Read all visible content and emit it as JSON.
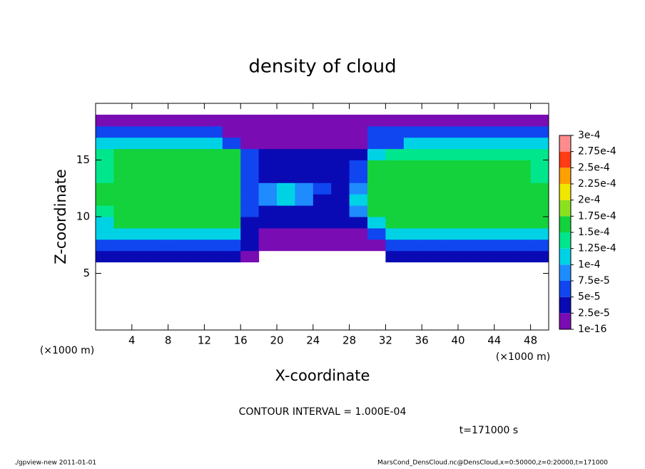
{
  "chart_data": {
    "type": "heatmap",
    "title": "density of cloud",
    "x_label": "X-coordinate",
    "y_label": "Z-coordinate",
    "x_units_left": "(×1000 m)",
    "x_units_right": "(×1000 m)",
    "contour_note": "CONTOUR INTERVAL = 1.000E-04",
    "time_note": "t=171000 s",
    "footer_left": "./gpview-new  2011-01-01",
    "footer_right": "MarsCond_DensCloud.nc@DensCloud,x=0:50000,z=0:20000,t=171000",
    "xlim": [
      0,
      50
    ],
    "ylim": [
      0,
      20
    ],
    "xticks": [
      4,
      8,
      12,
      16,
      20,
      24,
      28,
      32,
      36,
      40,
      44,
      48
    ],
    "yticks": [
      5,
      10,
      15
    ],
    "x_bins": [
      0,
      2,
      4,
      6,
      8,
      10,
      12,
      14,
      16,
      18,
      20,
      22,
      24,
      26,
      28,
      30,
      32,
      34,
      36,
      38,
      40,
      42,
      44,
      46,
      48,
      50
    ],
    "z_bins": [
      6,
      7,
      8,
      9,
      10,
      11,
      12,
      13,
      14,
      15,
      16,
      17,
      18,
      19
    ],
    "values": [
      [
        4e-05,
        4e-05,
        4e-05,
        4e-05,
        4e-05,
        4e-05,
        4e-05,
        4e-05,
        2e-05,
        null,
        null,
        null,
        null,
        null,
        null,
        null,
        3e-05,
        3e-05,
        3e-05,
        3e-05,
        3e-05,
        3e-05,
        3e-05,
        3e-05,
        3e-05
      ],
      [
        7e-05,
        7e-05,
        7e-05,
        7e-05,
        7e-05,
        7e-05,
        7e-05,
        7e-05,
        4e-05,
        1e-05,
        1e-05,
        1e-05,
        1e-05,
        1e-05,
        1e-05,
        2e-05,
        6e-05,
        6e-05,
        6e-05,
        6e-05,
        6e-05,
        6e-05,
        6e-05,
        6e-05,
        6e-05
      ],
      [
        0.000105,
        0.000105,
        0.000105,
        0.000105,
        0.000105,
        0.000105,
        0.000105,
        0.000105,
        3e-05,
        2e-05,
        2e-05,
        2e-05,
        2e-05,
        2e-05,
        2e-05,
        6e-05,
        0.000105,
        0.000105,
        0.000105,
        0.000105,
        0.000105,
        0.000105,
        0.000105,
        0.000105,
        0.000105
      ],
      [
        0.00012,
        0.00015,
        0.00015,
        0.00015,
        0.00015,
        0.00015,
        0.00015,
        0.00015,
        4e-05,
        3e-05,
        3e-05,
        3e-05,
        3e-05,
        3e-05,
        3e-05,
        0.00012,
        0.00015,
        0.00015,
        0.00015,
        0.00015,
        0.00015,
        0.00015,
        0.00015,
        0.00015,
        0.00015
      ],
      [
        0.00013,
        0.00016,
        0.00016,
        0.00016,
        0.00016,
        0.00016,
        0.00016,
        0.00016,
        5e-05,
        4e-05,
        4e-05,
        4e-05,
        4e-05,
        4e-05,
        9e-05,
        0.000155,
        0.000155,
        0.000155,
        0.000155,
        0.000155,
        0.000155,
        0.000155,
        0.000155,
        0.000155,
        0.000155
      ],
      [
        0.000165,
        0.000165,
        0.000165,
        0.000165,
        0.000165,
        0.000165,
        0.000165,
        0.000165,
        6e-05,
        9e-05,
        0.00011,
        8e-05,
        4e-05,
        4e-05,
        0.0001,
        0.00016,
        0.00016,
        0.00016,
        0.00016,
        0.00016,
        0.00016,
        0.00016,
        0.00016,
        0.00016,
        0.00016
      ],
      [
        0.000165,
        0.000165,
        0.000165,
        0.000165,
        0.000165,
        0.000165,
        0.000165,
        0.000165,
        6e-05,
        8e-05,
        0.00012,
        9e-05,
        5e-05,
        4e-05,
        8e-05,
        0.000165,
        0.000165,
        0.000165,
        0.000165,
        0.000165,
        0.000165,
        0.000165,
        0.000165,
        0.000165,
        0.000165
      ],
      [
        0.00014,
        0.000165,
        0.000165,
        0.000165,
        0.000165,
        0.000165,
        0.000165,
        0.000165,
        5e-05,
        4e-05,
        4e-05,
        4e-05,
        4e-05,
        4e-05,
        7e-05,
        0.000155,
        0.000155,
        0.000155,
        0.000155,
        0.000155,
        0.000155,
        0.000155,
        0.000155,
        0.000155,
        0.000145
      ],
      [
        0.00014,
        0.00016,
        0.00016,
        0.00016,
        0.00016,
        0.00016,
        0.00016,
        0.00016,
        5e-05,
        4e-05,
        4e-05,
        4e-05,
        4e-05,
        4e-05,
        7e-05,
        0.000155,
        0.000155,
        0.000155,
        0.000155,
        0.000155,
        0.000155,
        0.000155,
        0.000155,
        0.000155,
        0.000145
      ],
      [
        0.00013,
        0.00015,
        0.00015,
        0.00015,
        0.00015,
        0.00015,
        0.00015,
        0.00015,
        5e-05,
        3e-05,
        3e-05,
        3e-05,
        3e-05,
        3e-05,
        3e-05,
        0.00011,
        0.000145,
        0.000145,
        0.000145,
        0.000145,
        0.000145,
        0.000145,
        0.000145,
        0.000145,
        0.000145
      ],
      [
        0.00012,
        0.00012,
        0.00012,
        0.00012,
        0.00012,
        0.00012,
        0.00012,
        6e-05,
        2e-05,
        2e-05,
        2e-05,
        2e-05,
        2e-05,
        2e-05,
        2e-05,
        6e-05,
        6e-05,
        0.00011,
        0.00011,
        0.00011,
        0.00011,
        0.00011,
        0.00011,
        0.00011,
        0.00011
      ],
      [
        6e-05,
        6e-05,
        6e-05,
        6e-05,
        6e-05,
        6e-05,
        6e-05,
        2e-05,
        2e-05,
        2e-05,
        2e-05,
        2e-05,
        2e-05,
        2e-05,
        2e-05,
        5e-05,
        5e-05,
        5e-05,
        5e-05,
        5e-05,
        5e-05,
        5e-05,
        5e-05,
        5e-05,
        5e-05
      ],
      [
        1e-05,
        1e-05,
        1e-05,
        1e-05,
        1e-05,
        1e-05,
        1e-05,
        1e-05,
        1e-05,
        1e-05,
        1e-05,
        1e-05,
        1e-05,
        1e-05,
        1e-05,
        1e-05,
        1e-05,
        1e-05,
        1e-05,
        1e-05,
        1e-05,
        1e-05,
        1e-05,
        1e-05,
        1e-05
      ]
    ],
    "colorbar": {
      "levels": [
        {
          "value": 1e-16,
          "label": "1e-16"
        },
        {
          "value": 2.5e-05,
          "label": "2.5e-5"
        },
        {
          "value": 5e-05,
          "label": "5e-5"
        },
        {
          "value": 7.5e-05,
          "label": "7.5e-5"
        },
        {
          "value": 0.0001,
          "label": "1e-4"
        },
        {
          "value": 0.000125,
          "label": "1.25e-4"
        },
        {
          "value": 0.00015,
          "label": "1.5e-4"
        },
        {
          "value": 0.000175,
          "label": "1.75e-4"
        },
        {
          "value": 0.0002,
          "label": "2e-4"
        },
        {
          "value": 0.000225,
          "label": "2.25e-4"
        },
        {
          "value": 0.00025,
          "label": "2.5e-4"
        },
        {
          "value": 0.000275,
          "label": "2.75e-4"
        },
        {
          "value": 0.0003,
          "label": "3e-4"
        }
      ],
      "colors": [
        "#7a0cb4",
        "#0a0ab4",
        "#1046f0",
        "#1e8cff",
        "#00d2e6",
        "#00e68c",
        "#14d23c",
        "#8ce11e",
        "#f0e600",
        "#ffa000",
        "#ff3c14",
        "#ff8c8c"
      ]
    }
  }
}
